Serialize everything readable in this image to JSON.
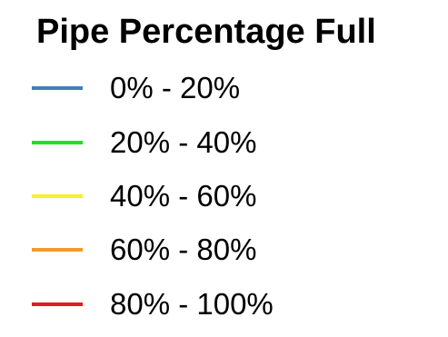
{
  "legend": {
    "title": "Pipe Percentage Full",
    "items": [
      {
        "label": "0% - 20%",
        "color": "#3d7fc0"
      },
      {
        "label": "20% - 40%",
        "color": "#22e022"
      },
      {
        "label": "40% - 60%",
        "color": "#f7f12a"
      },
      {
        "label": "60% - 80%",
        "color": "#f39a2a"
      },
      {
        "label": "80% - 100%",
        "color": "#e31c1c"
      }
    ]
  }
}
